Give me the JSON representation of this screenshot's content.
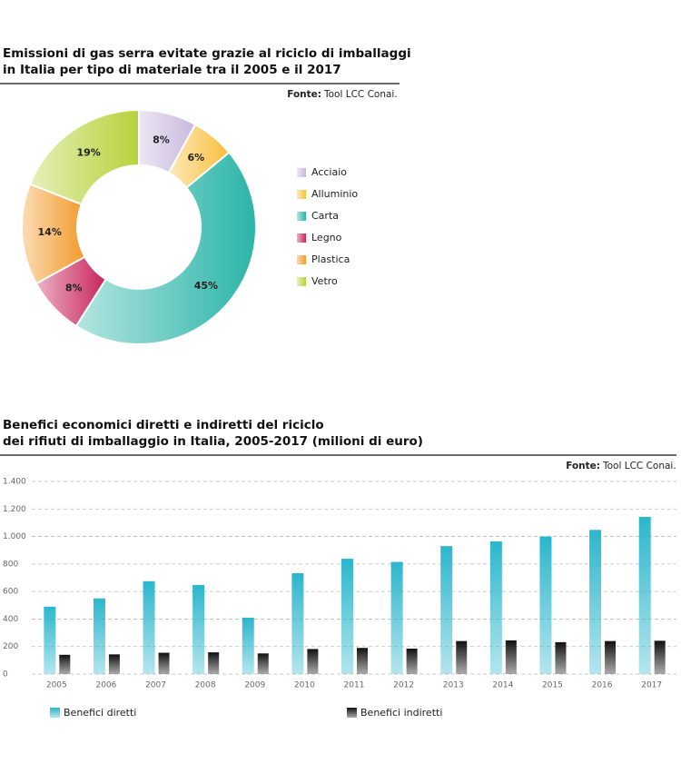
{
  "chart_data": [
    {
      "type": "donut",
      "title": [
        "Emissioni di gas serra evitate grazie al riciclo di imballaggi",
        "in Italia per tipo di materiale tra il 2005 e il 2017"
      ],
      "source_label": "Fonte:",
      "source": "Tool LCC Conai.",
      "categories": [
        "Acciaio",
        "Alluminio",
        "Carta",
        "Legno",
        "Plastica",
        "Vetro"
      ],
      "values": [
        8,
        6,
        45,
        8,
        14,
        19
      ],
      "value_labels": [
        "8%",
        "6%",
        "45%",
        "8%",
        "14%",
        "19%"
      ],
      "colors": [
        "#c9b8dd",
        "#f9bf3b",
        "#2bb5a8",
        "#c8245c",
        "#f39a2b",
        "#b7d23a"
      ],
      "legend": "right"
    },
    {
      "type": "bar",
      "title": [
        "Benefici economici diretti e indiretti del riciclo",
        "dei rifiuti di imballaggio in Italia, 2005-2017 (milioni di euro)"
      ],
      "source_label": "Fonte:",
      "source": "Tool LCC Conai.",
      "categories": [
        "2005",
        "2006",
        "2007",
        "2008",
        "2009",
        "2010",
        "2011",
        "2012",
        "2013",
        "2014",
        "2015",
        "2016",
        "2017"
      ],
      "series": [
        {
          "name": "Benefici diretti",
          "color": "#2bb6cc",
          "values": [
            490,
            550,
            675,
            648,
            410,
            733,
            838,
            815,
            930,
            965,
            1000,
            1048,
            1143
          ]
        },
        {
          "name": "Benefici indiretti",
          "color": "#111111",
          "values": [
            140,
            143,
            155,
            158,
            150,
            182,
            190,
            185,
            240,
            245,
            232,
            240,
            242
          ]
        }
      ],
      "ylim": [
        0,
        1400
      ],
      "yticks": [
        0,
        200,
        400,
        600,
        800,
        {
          "value": 1000,
          "label": "1.000"
        },
        {
          "value": 1200,
          "label": "1.200"
        },
        {
          "value": 1400,
          "label": "1.400"
        }
      ],
      "grid": true,
      "legend": "bottom"
    }
  ]
}
